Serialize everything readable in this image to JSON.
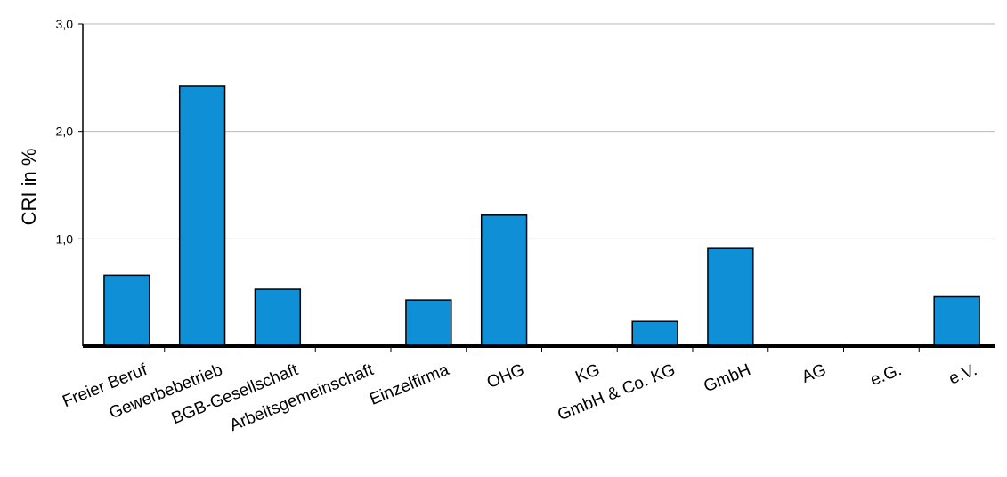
{
  "chart_data": {
    "type": "bar",
    "ylabel": "CRI in %",
    "ylim": [
      0,
      3.0
    ],
    "yticks": [
      "1,0",
      "2,0",
      "3,0"
    ],
    "ytick_values": [
      1.0,
      2.0,
      3.0
    ],
    "grid": true,
    "categories": [
      "Freier Beruf",
      "Gewerbebetrieb",
      "BGB-Gesellschaft",
      "Arbeitsgemeinschaft",
      "Einzelfirma",
      "OHG",
      "KG",
      "GmbH & Co. KG",
      "GmbH",
      "AG",
      "e.G.",
      "e.V."
    ],
    "values": [
      0.66,
      2.42,
      0.53,
      0.0,
      0.43,
      1.22,
      0.0,
      0.23,
      0.91,
      0.0,
      0.0,
      0.46
    ],
    "colors": {
      "bar": "#0f8fd6",
      "grid": "#b8b8b8",
      "axis": "#000000"
    }
  }
}
